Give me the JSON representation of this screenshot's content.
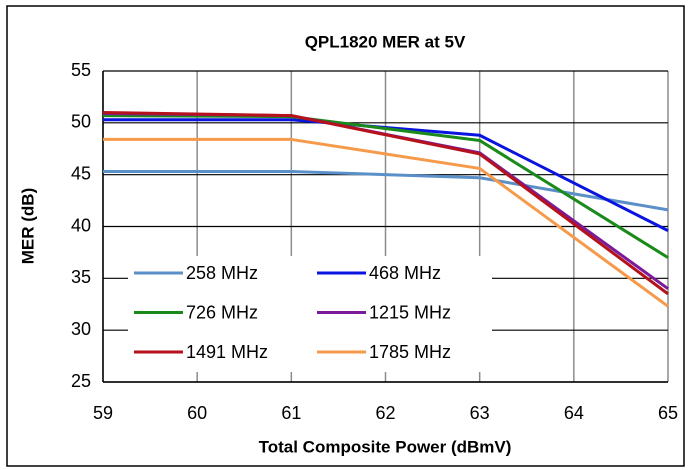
{
  "chart_data": {
    "type": "line",
    "title": "QPL1820 MER at 5V",
    "x_label": "Total Composite Power (dBmV)",
    "y_label": "MER (dB)",
    "x": [
      59,
      61,
      63,
      65
    ],
    "series": [
      {
        "name": "258 MHz",
        "color": "#5b8fc7",
        "values": [
          45.3,
          45.3,
          44.7,
          41.6
        ]
      },
      {
        "name": "468 MHz",
        "color": "#0a14e0",
        "values": [
          50.3,
          50.3,
          48.8,
          39.6
        ]
      },
      {
        "name": "726 MHz",
        "color": "#1a8a1a",
        "values": [
          50.7,
          50.6,
          48.3,
          37.0
        ]
      },
      {
        "name": "1215 MHz",
        "color": "#7b1a9a",
        "values": [
          50.9,
          50.7,
          47.1,
          34.0
        ]
      },
      {
        "name": "1491 MHz",
        "color": "#b5121b",
        "values": [
          51.0,
          50.7,
          47.0,
          33.5
        ]
      },
      {
        "name": "1785 MHz",
        "color": "#f59a4a",
        "values": [
          48.4,
          48.4,
          45.6,
          32.3
        ]
      }
    ],
    "xlim": [
      59,
      65
    ],
    "xticks": [
      59,
      60,
      61,
      62,
      63,
      64,
      65
    ],
    "ylim": [
      25,
      55
    ],
    "yticks": [
      25,
      30,
      35,
      40,
      45,
      50,
      55
    ],
    "grid": true
  }
}
